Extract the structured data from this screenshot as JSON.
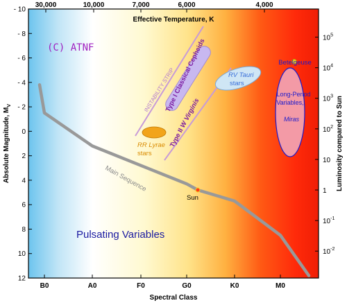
{
  "chart_data": {
    "type": "scatter",
    "top_axis": {
      "title": "Effective Temperature, K",
      "ticks": [
        "30,000",
        "10,000",
        "7,000",
        "6,000",
        "4,000"
      ]
    },
    "bottom_axis": {
      "title": "Spectral Class",
      "ticks": [
        "B0",
        "A0",
        "F0",
        "G0",
        "K0",
        "M0"
      ]
    },
    "left_axis": {
      "title": "Absolute Magnitude, M",
      "title_subscript": "V",
      "ticks": [
        -10,
        -8,
        -6,
        -4,
        -2,
        0,
        2,
        4,
        6,
        8,
        10,
        12
      ],
      "tick_labels": [
        "- 10",
        "- 8",
        "- 6",
        "- 4",
        "- 2",
        "0",
        "2",
        "4",
        "6",
        "8",
        "10",
        "12"
      ],
      "range": [
        -10,
        12
      ],
      "inverted": true
    },
    "right_axis": {
      "title": "Luminosity compared to Sun",
      "ticks": [
        {
          "base": "10",
          "exp": "5",
          "mag": -7.7
        },
        {
          "base": "10",
          "exp": "4",
          "mag": -5.2
        },
        {
          "base": "10",
          "exp": "3",
          "mag": -2.7
        },
        {
          "base": "10",
          "exp": "2",
          "mag": -0.2
        },
        {
          "base": "10",
          "exp": "",
          "mag": 2.3
        },
        {
          "base": "1",
          "exp": "",
          "mag": 4.8
        },
        {
          "base": "10",
          "exp": "-1",
          "mag": 7.3
        },
        {
          "base": "10",
          "exp": "-2",
          "mag": 9.8
        }
      ]
    },
    "main_sequence": {
      "label": "Main Sequence",
      "points": [
        {
          "x": "B0-",
          "mag": -3.8
        },
        {
          "x": "B0",
          "mag": -1.5
        },
        {
          "x": "A0",
          "mag": 1.2
        },
        {
          "x": "F0",
          "mag": 2.8
        },
        {
          "x": "G0",
          "mag": 4.3
        },
        {
          "x": "G2",
          "mag": 4.8
        },
        {
          "x": "K0",
          "mag": 5.7
        },
        {
          "x": "M0",
          "mag": 8.5
        },
        {
          "x": "M5",
          "mag": 11.8
        }
      ]
    },
    "sun": {
      "label": "Sun",
      "spectral": "G2",
      "mag": 4.8
    },
    "betelgeuse": {
      "label": "Betelgeuse",
      "spectral": "M1",
      "mag": -5.7
    },
    "regions": [
      {
        "label": "Type I Classical Cepheids"
      },
      {
        "label_prefix": "Type II ",
        "label_italic": "W Virginis"
      },
      {
        "label": "INSTABILITY STRIP"
      },
      {
        "label_line1": "RR Lyrae",
        "label_line2": "stars"
      },
      {
        "label_line1": "RV Tauri",
        "label_line2": "stars"
      },
      {
        "label_line1": "Long-Period",
        "label_line2": "Variables,",
        "label_line3": "Miras"
      }
    ],
    "caption": "Pulsating Variables",
    "watermark": "(C) ATNF"
  },
  "colors": {
    "main_sequence": "#999999",
    "cepheid_fill": "#c8b8f0",
    "cepheid_text": "#7a1aa0",
    "strip_line": "#c79ad8",
    "rr_lyrae_fill": "#f2a41a",
    "rr_lyrae_text": "#d98a00",
    "rv_tauri_fill": "#cfe6f5",
    "rv_tauri_text": "#3a6fd8",
    "mira_fill": "#f39aa6",
    "mira_text": "#1a1acc",
    "betelgeuse_dot": "#f0d01a",
    "caption_text": "#1a1aa0",
    "watermark_text": "#a020c0"
  }
}
